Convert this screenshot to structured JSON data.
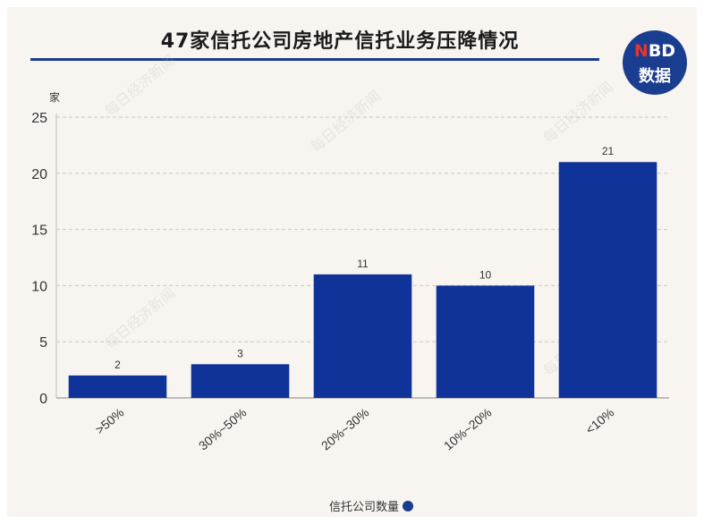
{
  "header": {
    "title": "47家信托公司房地产信托业务压降情况",
    "logo_line1_mark": "N",
    "logo_line1_rest": "BD",
    "logo_line2": "数据"
  },
  "watermark": "每日经济新闻",
  "colors": {
    "bar": "#0f3399",
    "accent": "#1a3d8f",
    "grid": "#c9c9c9"
  },
  "chart_data": {
    "type": "bar",
    "title": "47家信托公司房地产信托业务压降情况",
    "ylabel": "家",
    "xlabel": "",
    "ylim": [
      0,
      25
    ],
    "yticks": [
      0,
      5,
      10,
      15,
      20,
      25
    ],
    "categories": [
      ">50%",
      "30%~50%",
      "20%~30%",
      "10%~20%",
      "<10%"
    ],
    "series": [
      {
        "name": "信托公司数量",
        "values": [
          2,
          3,
          11,
          10,
          21
        ]
      }
    ],
    "grid": true,
    "legend_position": "bottom"
  }
}
